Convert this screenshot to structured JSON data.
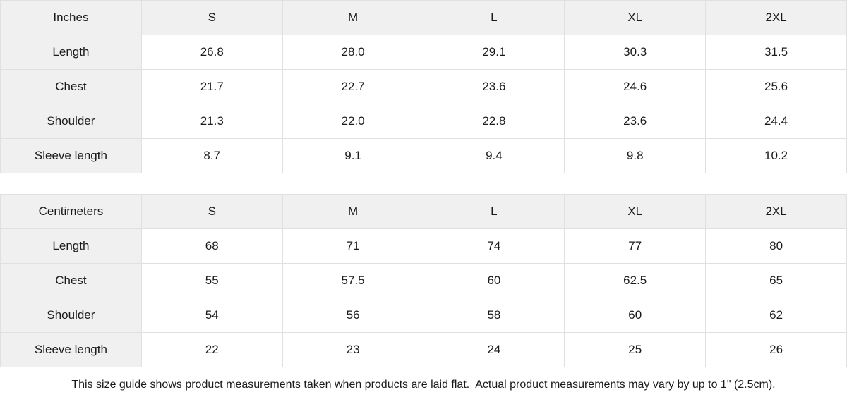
{
  "tables": [
    {
      "name": "inches",
      "unit_label": "Inches",
      "sizes": [
        "S",
        "M",
        "L",
        "XL",
        "2XL"
      ],
      "rows": [
        {
          "label": "Length",
          "values": [
            "26.8",
            "28.0",
            "29.1",
            "30.3",
            "31.5"
          ]
        },
        {
          "label": "Chest",
          "values": [
            "21.7",
            "22.7",
            "23.6",
            "24.6",
            "25.6"
          ]
        },
        {
          "label": "Shoulder",
          "values": [
            "21.3",
            "22.0",
            "22.8",
            "23.6",
            "24.4"
          ]
        },
        {
          "label": "Sleeve length",
          "values": [
            "8.7",
            "9.1",
            "9.4",
            "9.8",
            "10.2"
          ]
        }
      ]
    },
    {
      "name": "centimeters",
      "unit_label": "Centimeters",
      "sizes": [
        "S",
        "M",
        "L",
        "XL",
        "2XL"
      ],
      "rows": [
        {
          "label": "Length",
          "values": [
            "68",
            "71",
            "74",
            "77",
            "80"
          ]
        },
        {
          "label": "Chest",
          "values": [
            "55",
            "57.5",
            "60",
            "62.5",
            "65"
          ]
        },
        {
          "label": "Shoulder",
          "values": [
            "54",
            "56",
            "58",
            "60",
            "62"
          ]
        },
        {
          "label": "Sleeve length",
          "values": [
            "22",
            "23",
            "24",
            "25",
            "26"
          ]
        }
      ]
    }
  ],
  "footer": {
    "note": "This size guide shows product measurements taken when products are laid flat.  Actual product measurements may vary by up to 1\" (2.5cm)."
  },
  "colors": {
    "header_bg": "#f0f0f0",
    "border": "#e0e0e0",
    "text": "#1a1a1a",
    "cell_bg": "#ffffff"
  }
}
